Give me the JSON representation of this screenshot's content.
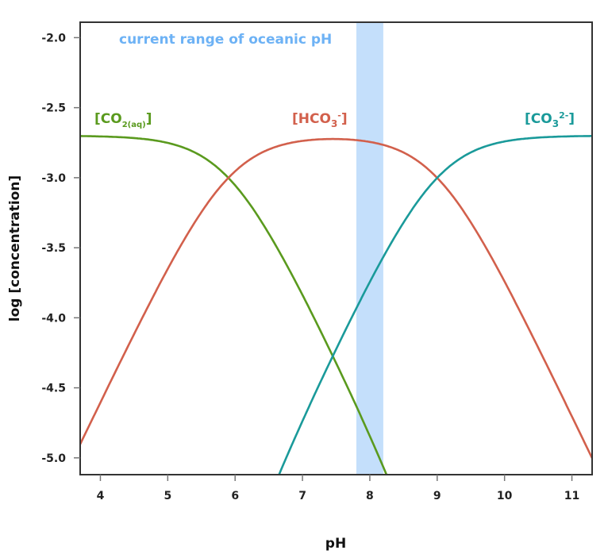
{
  "chart_data": {
    "type": "line",
    "title": "",
    "xlabel": "pH",
    "ylabel": "log [concentration]",
    "xlim": [
      3.7,
      11.3
    ],
    "ylim": [
      -5.12,
      -1.89
    ],
    "xticks": [
      4,
      5,
      6,
      7,
      8,
      9,
      10,
      11
    ],
    "yticks": [
      -2.0,
      -2.5,
      -3.0,
      -3.5,
      -4.0,
      -4.5,
      -5.0
    ],
    "ytick_labels": [
      "-2.0",
      "-2.5",
      "-3.0",
      "-3.5",
      "-4.0",
      "-4.5",
      "-5.0"
    ],
    "grid": false,
    "model": {
      "log_total": -2.7,
      "pK1": 5.9,
      "pK2": 9.0
    },
    "series": [
      {
        "name": "[CO2(aq)]",
        "label_main": "[CO",
        "label_sub": "2(aq)",
        "label_sup": "",
        "label_end": "]",
        "species": "CO2",
        "color": "#5a9a1e"
      },
      {
        "name": "[HCO3-]",
        "label_main": "[HCO",
        "label_sub": "3",
        "label_sup": "-",
        "label_end": "]",
        "species": "HCO3",
        "color": "#d2604c"
      },
      {
        "name": "[CO3 2-]",
        "label_main": "[CO",
        "label_sub": "3",
        "label_sup": "2-",
        "label_end": "]",
        "species": "CO3",
        "color": "#1a9a9a"
      }
    ],
    "annotations": [
      {
        "text": "current range of oceanic pH",
        "band": [
          7.8,
          8.2
        ],
        "color": "#c4dffb",
        "text_color": "#6db2f5"
      }
    ]
  }
}
